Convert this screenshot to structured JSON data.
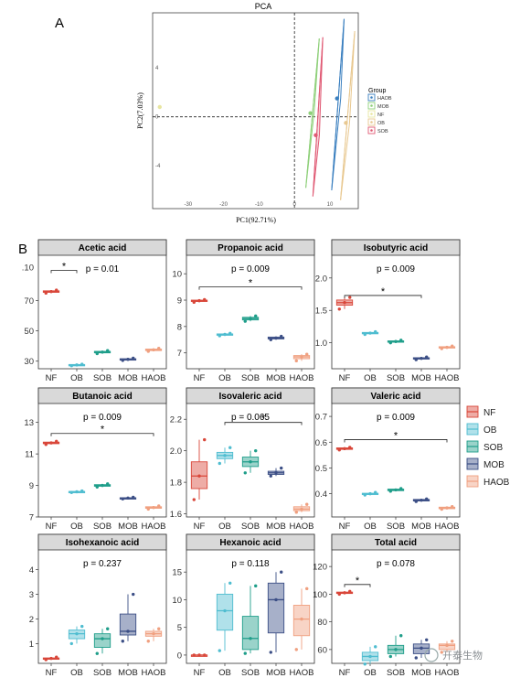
{
  "panel_labels": {
    "a": "A",
    "b": "B"
  },
  "watermark": "开泰生物",
  "colors": {
    "NF": "#d9473a",
    "OB": "#4fbdd0",
    "SOB": "#1f9e8a",
    "MOB": "#3c4f86",
    "HAOB": "#f0a080"
  },
  "chart_data": [
    {
      "type": "scatter",
      "title": "PCA",
      "xlabel": "PC1(92.71%)",
      "ylabel": "PC2(7.03%)",
      "xlim": [
        -40,
        18
      ],
      "ylim": [
        -7.5,
        8.5
      ],
      "xticks": [
        -30,
        -20,
        -10,
        0,
        10
      ],
      "yticks": [
        -4,
        0,
        4
      ],
      "grid": false,
      "legend": {
        "title": "Group",
        "placement": "right",
        "entries": [
          "HAOB",
          "MOB",
          "NF",
          "OB",
          "SOB"
        ]
      },
      "series": [
        {
          "name": "NF",
          "center": [
            -38,
            0.8
          ]
        },
        {
          "name": "MOB",
          "center": [
            4.5,
            0.3
          ],
          "ellipse": [
            [
              3.2,
              -5.8
            ],
            [
              7.0,
              6.4
            ]
          ]
        },
        {
          "name": "SOB",
          "center": [
            6.0,
            -1.5
          ],
          "ellipse": [
            [
              5.2,
              -6.5
            ],
            [
              8.0,
              6.5
            ]
          ]
        },
        {
          "name": "HAOB",
          "center": [
            12,
            1.5
          ],
          "ellipse": [
            [
              10.5,
              -6.0
            ],
            [
              14.0,
              8.0
            ]
          ]
        },
        {
          "name": "OB",
          "center": [
            14.5,
            -0.5
          ],
          "ellipse": [
            [
              13.0,
              -6.8
            ],
            [
              17.0,
              7.0
            ]
          ]
        }
      ]
    },
    {
      "type": "box",
      "layout": "3x3 facet grid, legend right",
      "categories": [
        "NF",
        "OB",
        "SOB",
        "MOB",
        "HAOB"
      ],
      "legend": [
        "NF",
        "OB",
        "SOB",
        "MOB",
        "HAOB"
      ],
      "panels": [
        {
          "title": "Acetic acid",
          "p": "p = 0.01",
          "ylim": [
            25,
            100
          ],
          "yticks": [
            30,
            50,
            70
          ],
          "yticks_text": [
            "30",
            "50",
            "70"
          ],
          "top_tick": ".10",
          "sig": [
            {
              "from": "NF",
              "to": "OB",
              "y": 90,
              "label": "*"
            }
          ],
          "boxes": [
            [
              75,
              75.5,
              76,
              76.5,
              77
            ],
            [
              27,
              27.2,
              27.5,
              27.8,
              28
            ],
            [
              35,
              35.5,
              36,
              36.5,
              37
            ],
            [
              30.5,
              31,
              31.3,
              31.6,
              32
            ],
            [
              36.5,
              37,
              37.5,
              38,
              38.5
            ]
          ],
          "points": [
            [
              75,
              76,
              77
            ],
            [
              27,
              27.5,
              28
            ],
            [
              35,
              36,
              37
            ],
            [
              30.5,
              31.2,
              32
            ],
            [
              36.5,
              37.5,
              38.5
            ]
          ]
        },
        {
          "title": "Propanoic acid",
          "p": "p = 0.009",
          "ylim": [
            6.4,
            10.7
          ],
          "yticks": [
            7,
            8,
            9,
            10
          ],
          "yticks_text": [
            "7",
            "8",
            "9",
            "10"
          ],
          "sig": [
            {
              "from": "NF",
              "to": "HAOB",
              "y": 9.5,
              "label": "*"
            }
          ],
          "boxes": [
            [
              8.92,
              8.95,
              8.98,
              9.0,
              9.02
            ],
            [
              7.65,
              7.67,
              7.7,
              7.72,
              7.74
            ],
            [
              8.2,
              8.25,
              8.3,
              8.35,
              8.4
            ],
            [
              7.5,
              7.53,
              7.56,
              7.6,
              7.63
            ],
            [
              6.7,
              6.78,
              6.85,
              6.9,
              6.95
            ]
          ],
          "points": [
            [
              8.92,
              8.98,
              9.02
            ],
            [
              7.65,
              7.7,
              7.74
            ],
            [
              8.2,
              8.3,
              8.4
            ],
            [
              7.5,
              7.56,
              7.63
            ],
            [
              6.7,
              6.85,
              6.95
            ]
          ]
        },
        {
          "title": "Isobutyric acid",
          "p": "p = 0.009",
          "ylim": [
            0.6,
            2.35
          ],
          "yticks": [
            1.0,
            1.5,
            2.0
          ],
          "yticks_text": [
            "1.0",
            "1.5",
            "2.0"
          ],
          "sig": [
            {
              "from": "NF",
              "to": "MOB",
              "y": 1.73,
              "label": "*"
            }
          ],
          "boxes": [
            [
              1.52,
              1.58,
              1.62,
              1.66,
              1.7
            ],
            [
              1.13,
              1.14,
              1.15,
              1.16,
              1.17
            ],
            [
              1.0,
              1.01,
              1.02,
              1.03,
              1.04
            ],
            [
              0.74,
              0.75,
              0.76,
              0.77,
              0.78
            ],
            [
              0.91,
              0.92,
              0.93,
              0.94,
              0.95
            ]
          ],
          "points": [
            [
              1.52,
              1.62,
              1.7
            ],
            [
              1.13,
              1.15,
              1.17
            ],
            [
              1.0,
              1.02,
              1.04
            ],
            [
              0.74,
              0.76,
              0.78
            ],
            [
              0.91,
              0.93,
              0.95
            ]
          ]
        },
        {
          "title": "Butanoic acid",
          "p": "p = 0.009",
          "ylim": [
            7,
            14.2
          ],
          "yticks": [
            7,
            9,
            11,
            13
          ],
          "yticks_text": [
            "7",
            "9",
            "11",
            "13"
          ],
          "sig": [
            {
              "from": "NF",
              "to": "HAOB",
              "y": 12.3,
              "label": "*"
            }
          ],
          "boxes": [
            [
              11.6,
              11.65,
              11.7,
              11.75,
              11.8
            ],
            [
              8.55,
              8.58,
              8.6,
              8.62,
              8.65
            ],
            [
              8.9,
              8.95,
              9.0,
              9.05,
              9.1
            ],
            [
              8.15,
              8.18,
              8.2,
              8.22,
              8.25
            ],
            [
              7.5,
              7.55,
              7.6,
              7.65,
              7.7
            ]
          ],
          "points": [
            [
              11.6,
              11.7,
              11.8
            ],
            [
              8.55,
              8.6,
              8.65
            ],
            [
              8.9,
              9.0,
              9.1
            ],
            [
              8.15,
              8.2,
              8.25
            ],
            [
              7.5,
              7.6,
              7.7
            ]
          ]
        },
        {
          "title": "Isovaleric acid",
          "p": "p = 0.065",
          "ylim": [
            1.58,
            2.3
          ],
          "yticks": [
            1.6,
            1.8,
            2.0,
            2.2
          ],
          "yticks_text": [
            "1.6",
            "1.8",
            "2.0",
            "2.2"
          ],
          "sig": [
            {
              "from": "OB",
              "to": "HAOB",
              "y": 2.18,
              "label": "*"
            }
          ],
          "boxes": [
            [
              1.69,
              1.76,
              1.84,
              1.93,
              2.07
            ],
            [
              1.92,
              1.95,
              1.97,
              1.99,
              2.02
            ],
            [
              1.86,
              1.9,
              1.93,
              1.96,
              2.0
            ],
            [
              1.84,
              1.85,
              1.86,
              1.87,
              1.89
            ],
            [
              1.61,
              1.62,
              1.63,
              1.645,
              1.66
            ]
          ],
          "points": [
            [
              1.69,
              1.84,
              2.07
            ],
            [
              1.92,
              1.97,
              2.02
            ],
            [
              1.86,
              1.93,
              2.0
            ],
            [
              1.84,
              1.86,
              1.89
            ],
            [
              1.61,
              1.63,
              1.66
            ]
          ]
        },
        {
          "title": "Valeric acid",
          "p": "p = 0.009",
          "ylim": [
            0.31,
            0.75
          ],
          "yticks": [
            0.4,
            0.5,
            0.6,
            0.7
          ],
          "yticks_text": [
            "0.4",
            "0.5",
            "0.6",
            "0.7"
          ],
          "sig": [
            {
              "from": "NF",
              "to": "HAOB",
              "y": 0.61,
              "label": "*"
            }
          ],
          "boxes": [
            [
              0.57,
              0.572,
              0.575,
              0.578,
              0.58
            ],
            [
              0.395,
              0.397,
              0.4,
              0.402,
              0.405
            ],
            [
              0.41,
              0.412,
              0.415,
              0.418,
              0.42
            ],
            [
              0.37,
              0.372,
              0.375,
              0.378,
              0.38
            ],
            [
              0.34,
              0.342,
              0.345,
              0.348,
              0.35
            ]
          ],
          "points": [
            [
              0.57,
              0.575,
              0.58
            ],
            [
              0.395,
              0.4,
              0.405
            ],
            [
              0.41,
              0.415,
              0.42
            ],
            [
              0.37,
              0.375,
              0.38
            ],
            [
              0.34,
              0.345,
              0.35
            ]
          ]
        },
        {
          "title": "Isohexanoic acid",
          "p": "p = 0.237",
          "ylim": [
            0.2,
            4.8
          ],
          "yticks": [
            1,
            2,
            3,
            4
          ],
          "yticks_text": [
            "1",
            "2",
            "3",
            "4"
          ],
          "sig": [],
          "boxes": [
            [
              0.35,
              0.37,
              0.4,
              0.42,
              0.45
            ],
            [
              1.0,
              1.2,
              1.4,
              1.55,
              1.7
            ],
            [
              0.6,
              0.85,
              1.2,
              1.4,
              1.6
            ],
            [
              1.1,
              1.35,
              1.5,
              2.2,
              3.0
            ],
            [
              1.1,
              1.3,
              1.4,
              1.5,
              1.6
            ]
          ],
          "points": [
            [
              0.35,
              0.4,
              0.45
            ],
            [
              1.0,
              1.4,
              1.7
            ],
            [
              0.6,
              1.2,
              1.6
            ],
            [
              1.1,
              1.5,
              3.0
            ],
            [
              1.1,
              1.4,
              1.6
            ]
          ]
        },
        {
          "title": "Hexanoic acid",
          "p": "p = 0.118",
          "ylim": [
            -1.5,
            19
          ],
          "yticks": [
            0,
            5,
            10,
            15
          ],
          "yticks_text": [
            "0",
            "5",
            "10",
            "15"
          ],
          "sig": [],
          "boxes": [
            [
              -0.1,
              0,
              0,
              0,
              0.1
            ],
            [
              0.8,
              4.5,
              8,
              11,
              13
            ],
            [
              0.3,
              1,
              3,
              7,
              12.5
            ],
            [
              0.5,
              4,
              10,
              13,
              15
            ],
            [
              1,
              3.5,
              6.5,
              9,
              12
            ]
          ],
          "points": [
            [
              0,
              0,
              0
            ],
            [
              0.8,
              8,
              13
            ],
            [
              0.3,
              3,
              12.5
            ],
            [
              0.5,
              10,
              15
            ],
            [
              1,
              6.5,
              12
            ]
          ]
        },
        {
          "title": "Total acid",
          "p": "p = 0.078",
          "ylim": [
            50,
            132
          ],
          "yticks": [
            60,
            80,
            100,
            120
          ],
          "yticks_text": [
            "60",
            "80",
            "100",
            "120"
          ],
          "sig": [
            {
              "from": "NF",
              "to": "OB",
              "y": 107,
              "label": "*"
            }
          ],
          "boxes": [
            [
              100,
              100.5,
              101,
              101.5,
              102
            ],
            [
              49.5,
              52,
              55,
              58,
              62
            ],
            [
              55,
              57,
              60,
              63,
              70
            ],
            [
              54,
              57,
              61,
              64,
              67
            ],
            [
              58,
              60,
              63,
              64,
              66
            ]
          ],
          "points": [
            [
              100,
              101,
              102
            ],
            [
              49.5,
              55,
              62
            ],
            [
              55,
              60,
              70
            ],
            [
              54,
              61,
              67
            ],
            [
              58,
              63,
              66
            ]
          ]
        }
      ]
    }
  ]
}
